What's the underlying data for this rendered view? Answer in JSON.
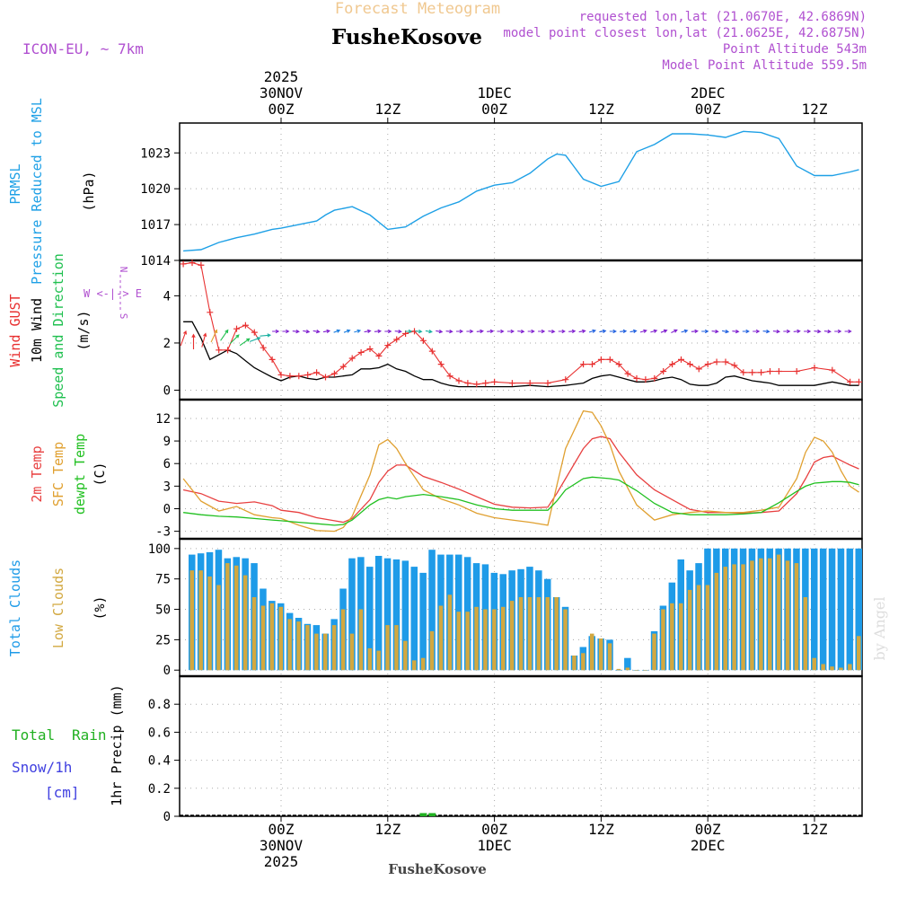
{
  "header": {
    "model": "ICON-EU, ~ 7km",
    "subtitle": "Forecast Meteogram",
    "station": "FusheKosove",
    "requested": "requested lon,lat (21.0670E, 42.6869N)",
    "model_point": "model point closest lon,lat (21.0625E, 42.6875N)",
    "altitude": "Point Altitude 543m",
    "model_altitude": "Model Point Altitude 559.5m"
  },
  "colors": {
    "pressure": "#1ea0e6",
    "gust": "#e83030",
    "wind": "#000000",
    "direction": "#20c050",
    "arrows": "#8020d0",
    "temp2m": "#e84040",
    "sfc": "#e0a030",
    "dewpt": "#20c020",
    "total_clouds": "#1e9be8",
    "low_clouds": "#d2a840",
    "rain": "#20b020",
    "snow": "#4040e0",
    "purple_text": "#b050d0",
    "subtitle": "#f0c890"
  },
  "time_axis": {
    "top_labels": [
      {
        "t": 0,
        "lines": [
          "2025",
          "30NOV",
          "00Z"
        ]
      },
      {
        "t": 12,
        "lines": [
          "12Z"
        ]
      },
      {
        "t": 24,
        "lines": [
          "1DEC",
          "00Z"
        ]
      },
      {
        "t": 36,
        "lines": [
          "12Z"
        ]
      },
      {
        "t": 48,
        "lines": [
          "2DEC",
          "00Z"
        ]
      },
      {
        "t": 60,
        "lines": [
          "12Z"
        ]
      }
    ],
    "bottom_labels": [
      {
        "t": 0,
        "lines": [
          "00Z",
          "30NOV",
          "2025"
        ]
      },
      {
        "t": 12,
        "lines": [
          "12Z"
        ]
      },
      {
        "t": 24,
        "lines": [
          "00Z",
          "1DEC"
        ]
      },
      {
        "t": 36,
        "lines": [
          "12Z"
        ]
      },
      {
        "t": 48,
        "lines": [
          "00Z",
          "2DEC"
        ]
      },
      {
        "t": 60,
        "lines": [
          "12Z"
        ]
      }
    ],
    "footer_station": "FusheKosove"
  },
  "wind_legend": {
    "we": "W <-|-> E",
    "n": "N",
    "s": "S"
  },
  "panel_labels": {
    "pressure": [
      "PRMSL",
      "Pressure Reduced to MSL",
      "(hPa)"
    ],
    "wind": [
      "Wind GUST",
      "10m Wind",
      "Speed and Direction",
      "(m/s)"
    ],
    "temp": [
      "2m Temp",
      "SFC Temp",
      "dewpt Temp",
      "(C)"
    ],
    "clouds": [
      "Total Clouds",
      "Low Clouds",
      "(%)"
    ],
    "precip": [
      "Total",
      "Rain",
      "Snow/1h",
      "[cm]",
      "1hr Precip (mm)"
    ]
  },
  "watermark": "by Angel",
  "chart_data": [
    {
      "type": "line",
      "title": "PRMSL Pressure Reduced to MSL",
      "ylabel": "(hPa)",
      "ylim": [
        1014,
        1025.5
      ],
      "yticks": [
        1014,
        1017,
        1020,
        1023
      ],
      "x_hours_from_30NOV00Z": [
        -11,
        -9,
        -7,
        -5,
        -3,
        -1,
        0,
        2,
        4,
        5,
        6,
        8,
        10,
        12,
        14,
        16,
        18,
        20,
        22,
        24,
        26,
        28,
        30,
        31,
        32,
        34,
        36,
        38,
        40,
        42,
        44,
        46,
        48,
        50,
        52,
        54,
        56,
        58,
        60,
        62,
        64,
        65
      ],
      "series": [
        {
          "name": "PRMSL",
          "values": [
            1014.8,
            1014.9,
            1015.5,
            1015.9,
            1016.2,
            1016.6,
            1016.7,
            1017.0,
            1017.3,
            1017.8,
            1018.2,
            1018.5,
            1017.8,
            1016.6,
            1016.8,
            1017.7,
            1018.4,
            1018.9,
            1019.8,
            1020.3,
            1020.5,
            1021.3,
            1022.5,
            1022.9,
            1022.8,
            1020.8,
            1020.2,
            1020.6,
            1023.1,
            1023.7,
            1024.6,
            1024.6,
            1024.5,
            1024.3,
            1024.8,
            1024.7,
            1024.2,
            1021.9,
            1021.1,
            1021.1,
            1021.4,
            1021.6
          ]
        }
      ]
    },
    {
      "type": "line",
      "title": "Wind GUST / 10m Wind Speed and Direction",
      "ylabel": "(m/s)",
      "ylim": [
        -0.4,
        5.5
      ],
      "yticks": [
        0,
        2,
        4
      ],
      "x_hours_from_30NOV00Z": [
        -11,
        -10,
        -9,
        -8,
        -7,
        -6,
        -5,
        -4,
        -3,
        -2,
        -1,
        0,
        1,
        2,
        3,
        4,
        5,
        6,
        7,
        8,
        9,
        10,
        11,
        12,
        13,
        14,
        15,
        16,
        17,
        18,
        19,
        20,
        21,
        22,
        23,
        24,
        26,
        28,
        30,
        32,
        34,
        35,
        36,
        37,
        38,
        39,
        40,
        41,
        42,
        43,
        44,
        45,
        46,
        47,
        48,
        49,
        50,
        51,
        52,
        53,
        54,
        55,
        56,
        58,
        60,
        62,
        64,
        65
      ],
      "series": [
        {
          "name": "Wind GUST",
          "values": [
            5.35,
            5.4,
            5.3,
            3.3,
            1.7,
            1.7,
            2.6,
            2.75,
            2.45,
            1.8,
            1.3,
            0.65,
            0.6,
            0.6,
            0.65,
            0.75,
            0.55,
            0.7,
            1.0,
            1.35,
            1.6,
            1.75,
            1.45,
            1.9,
            2.15,
            2.4,
            2.5,
            2.1,
            1.65,
            1.1,
            0.6,
            0.4,
            0.3,
            0.25,
            0.3,
            0.35,
            0.3,
            0.3,
            0.3,
            0.45,
            1.1,
            1.1,
            1.3,
            1.3,
            1.1,
            0.7,
            0.5,
            0.45,
            0.5,
            0.8,
            1.1,
            1.3,
            1.1,
            0.9,
            1.1,
            1.2,
            1.2,
            1.05,
            0.75,
            0.75,
            0.75,
            0.8,
            0.8,
            0.8,
            0.95,
            0.85,
            0.35,
            0.35
          ]
        },
        {
          "name": "10m Wind",
          "values": [
            2.9,
            2.9,
            2.2,
            1.3,
            1.5,
            1.7,
            1.55,
            1.25,
            0.95,
            0.75,
            0.55,
            0.4,
            0.55,
            0.6,
            0.5,
            0.45,
            0.55,
            0.55,
            0.6,
            0.65,
            0.9,
            0.9,
            0.95,
            1.1,
            0.9,
            0.8,
            0.6,
            0.45,
            0.45,
            0.3,
            0.2,
            0.15,
            0.15,
            0.15,
            0.15,
            0.15,
            0.15,
            0.2,
            0.15,
            0.2,
            0.3,
            0.5,
            0.6,
            0.65,
            0.55,
            0.45,
            0.35,
            0.35,
            0.4,
            0.5,
            0.55,
            0.45,
            0.25,
            0.2,
            0.2,
            0.3,
            0.55,
            0.6,
            0.5,
            0.4,
            0.35,
            0.3,
            0.2,
            0.2,
            0.2,
            0.35,
            0.2,
            0.2
          ]
        }
      ],
      "direction_arrows_deg": [
        200,
        180,
        195,
        205,
        215,
        225,
        235,
        250,
        265,
        270,
        270,
        275,
        280,
        280,
        260,
        250,
        250,
        255,
        260,
        265,
        270,
        275,
        270,
        275,
        280,
        280,
        275,
        270,
        270,
        265,
        265,
        270,
        270,
        275,
        270,
        270,
        275,
        270,
        265,
        260,
        255,
        260,
        270,
        265,
        260,
        255,
        255,
        250,
        245,
        255,
        265,
        270,
        275,
        280,
        275,
        270,
        270,
        275,
        275,
        270,
        265,
        270,
        275,
        275,
        270,
        270
      ]
    },
    {
      "type": "line",
      "title": "2m Temp / SFC Temp / dewpt Temp",
      "ylabel": "(C)",
      "ylim": [
        -4,
        14.5
      ],
      "yticks": [
        -3,
        0,
        3,
        6,
        9,
        12
      ],
      "x_hours_from_30NOV00Z": [
        -11,
        -9,
        -7,
        -5,
        -3,
        -1,
        0,
        2,
        4,
        6,
        7,
        8,
        10,
        11,
        12,
        13,
        14,
        16,
        18,
        20,
        22,
        24,
        26,
        28,
        30,
        31,
        32,
        34,
        35,
        36,
        37,
        38,
        40,
        42,
        44,
        46,
        48,
        50,
        52,
        54,
        56,
        58,
        59,
        60,
        61,
        62,
        63,
        64,
        65
      ],
      "series": [
        {
          "name": "2m Temp",
          "values": [
            2.5,
            2.0,
            1.0,
            0.7,
            0.9,
            0.4,
            -0.2,
            -0.5,
            -1.2,
            -1.6,
            -1.8,
            -1.3,
            1.2,
            3.5,
            5.0,
            5.8,
            5.8,
            4.3,
            3.5,
            2.6,
            1.6,
            0.6,
            0.2,
            0.1,
            0.2,
            2.0,
            4.0,
            8.0,
            9.3,
            9.6,
            9.3,
            7.5,
            4.5,
            2.5,
            1.2,
            -0.1,
            -0.5,
            -0.5,
            -0.6,
            -0.5,
            -0.3,
            2.0,
            4.0,
            6.2,
            6.8,
            7.0,
            6.4,
            5.8,
            5.3
          ]
        },
        {
          "name": "SFC Temp",
          "values": [
            4.0,
            1.0,
            -0.3,
            0.3,
            -0.8,
            -1.2,
            -1.3,
            -2.2,
            -2.9,
            -3.0,
            -2.5,
            -1.0,
            4.5,
            8.5,
            9.2,
            8.0,
            6.0,
            2.5,
            1.3,
            0.5,
            -0.6,
            -1.2,
            -1.5,
            -1.8,
            -2.2,
            3.0,
            8.0,
            13.0,
            12.8,
            11.0,
            8.5,
            5.0,
            0.5,
            -1.5,
            -0.8,
            -0.5,
            -0.3,
            -0.5,
            -0.5,
            -0.2,
            0.2,
            4.0,
            7.5,
            9.5,
            9.0,
            7.5,
            5.0,
            3.0,
            2.2
          ]
        },
        {
          "name": "dewpt Temp",
          "values": [
            -0.5,
            -0.8,
            -1.0,
            -1.1,
            -1.3,
            -1.5,
            -1.6,
            -1.8,
            -2.0,
            -2.2,
            -2.1,
            -1.5,
            0.5,
            1.2,
            1.5,
            1.3,
            1.6,
            1.9,
            1.6,
            1.2,
            0.5,
            0.0,
            -0.2,
            -0.2,
            -0.2,
            1.0,
            2.5,
            4.0,
            4.2,
            4.1,
            4.0,
            3.8,
            2.4,
            0.7,
            -0.5,
            -0.8,
            -0.8,
            -0.8,
            -0.7,
            -0.5,
            0.8,
            2.3,
            3.0,
            3.4,
            3.5,
            3.6,
            3.6,
            3.5,
            3.2
          ]
        }
      ]
    },
    {
      "type": "bar",
      "title": "Total Clouds / Low Clouds",
      "ylabel": "(%)",
      "ylim": [
        -5,
        108
      ],
      "yticks": [
        0,
        25,
        50,
        75,
        100
      ],
      "x_hours_from_30NOV00Z": [
        -10,
        -9,
        -8,
        -7,
        -6,
        -5,
        -4,
        -3,
        -2,
        -1,
        0,
        1,
        2,
        3,
        4,
        5,
        6,
        7,
        8,
        9,
        10,
        11,
        12,
        13,
        14,
        15,
        16,
        17,
        18,
        19,
        20,
        21,
        22,
        23,
        24,
        25,
        26,
        27,
        28,
        29,
        30,
        31,
        32,
        33,
        34,
        35,
        36,
        37,
        38,
        39,
        40,
        41,
        42,
        43,
        44,
        45,
        46,
        47,
        48,
        49,
        50,
        51,
        52,
        53,
        54,
        55,
        56,
        57,
        58,
        59,
        60,
        61,
        62,
        63,
        64,
        65
      ],
      "series": [
        {
          "name": "Total Clouds",
          "values": [
            95,
            96,
            97,
            99,
            92,
            93,
            92,
            88,
            67,
            57,
            55,
            47,
            43,
            38,
            37,
            30,
            42,
            67,
            92,
            93,
            85,
            94,
            92,
            91,
            90,
            85,
            80,
            99,
            95,
            95,
            95,
            93,
            88,
            87,
            80,
            79,
            82,
            83,
            85,
            82,
            75,
            60,
            52,
            12,
            19,
            28,
            26,
            25,
            0,
            10,
            0,
            0,
            32,
            53,
            72,
            91,
            82,
            88,
            100,
            100,
            100,
            100,
            100,
            100,
            100,
            100,
            100,
            100,
            100,
            100,
            100,
            100,
            100,
            100,
            100,
            100
          ]
        },
        {
          "name": "Low Clouds",
          "values": [
            82,
            82,
            77,
            70,
            88,
            86,
            78,
            60,
            53,
            55,
            52,
            42,
            40,
            37,
            30,
            30,
            37,
            50,
            30,
            50,
            18,
            16,
            37,
            37,
            24,
            8,
            10,
            32,
            53,
            62,
            48,
            48,
            52,
            50,
            50,
            52,
            57,
            60,
            60,
            60,
            60,
            60,
            50,
            12,
            14,
            30,
            26,
            22,
            1,
            2,
            0,
            0,
            30,
            50,
            55,
            55,
            66,
            70,
            70,
            80,
            85,
            87,
            87,
            90,
            92,
            92,
            95,
            90,
            88,
            60,
            10,
            5,
            3,
            2,
            5,
            28
          ]
        }
      ]
    },
    {
      "type": "bar",
      "title": "1hr Precip (mm)",
      "ylabel": "1hr Precip (mm)",
      "ylim": [
        0,
        1.0
      ],
      "yticks": [
        0,
        0.2,
        0.4,
        0.6,
        0.8
      ],
      "x_hours_from_30NOV00Z": [
        16,
        17
      ],
      "series": [
        {
          "name": "Total Rain",
          "values": [
            0.01,
            0.01
          ]
        }
      ]
    }
  ]
}
